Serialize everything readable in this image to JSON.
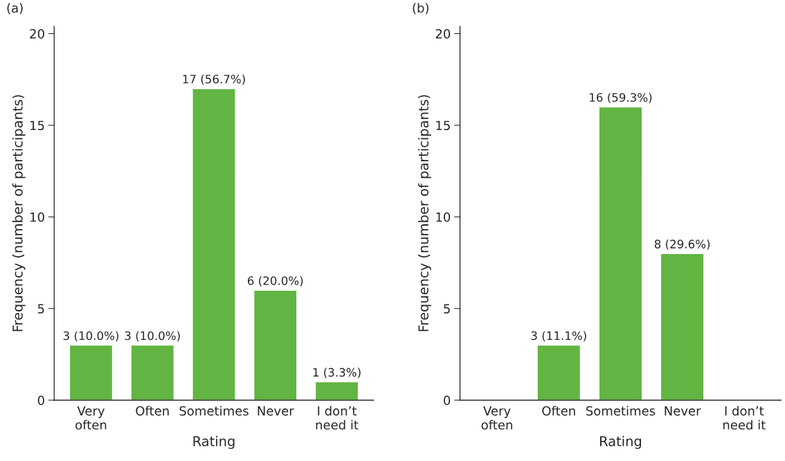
{
  "chart_data": [
    {
      "type": "bar",
      "title": "(a)",
      "xlabel": "Rating",
      "ylabel": "Frequency (number of participants)",
      "categories": [
        "Very\noften",
        "Often",
        "Sometimes",
        "Never",
        "I don’t\nneed it"
      ],
      "values": [
        3,
        3,
        17,
        6,
        1
      ],
      "value_labels": [
        "3 (10.0%)",
        "3 (10.0%)",
        "17 (56.7%)",
        "6 (20.0%)",
        "1 (3.3%)"
      ],
      "color": "#62b543",
      "ylim": [
        0,
        20.4
      ],
      "yticks": [
        0,
        5,
        10,
        15,
        20
      ],
      "grid": false,
      "legend": false
    },
    {
      "type": "bar",
      "title": "(b)",
      "xlabel": "Rating",
      "ylabel": "Frequency (number of participants)",
      "categories": [
        "Very\noften",
        "Often",
        "Sometimes",
        "Never",
        "I don’t\nneed it"
      ],
      "values": [
        null,
        3,
        16,
        8,
        null
      ],
      "value_labels": [
        null,
        "3 (11.1%)",
        "16 (59.3%)",
        "8 (29.6%)",
        null
      ],
      "color": "#62b543",
      "ylim": [
        0,
        20.4
      ],
      "yticks": [
        0,
        5,
        10,
        15,
        20
      ],
      "grid": false,
      "legend": false
    }
  ]
}
